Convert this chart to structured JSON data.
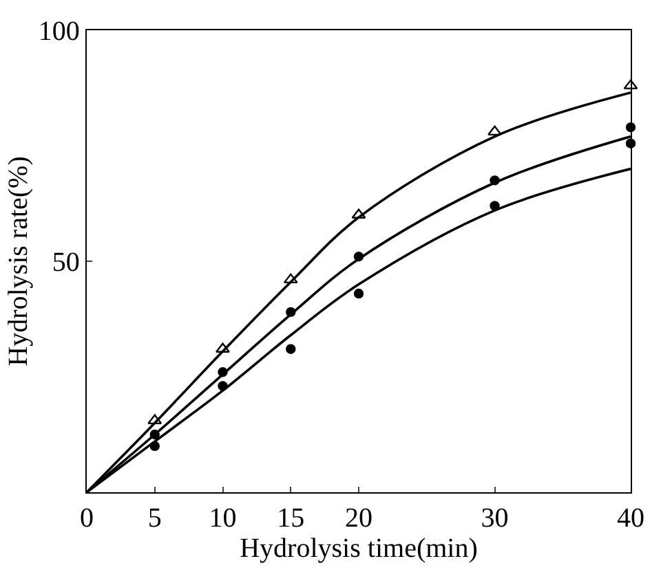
{
  "chart_data": {
    "type": "scatter",
    "xlabel": "Hydrolysis time(min)",
    "ylabel": "Hydrolysis rate(%)",
    "xlim": [
      0,
      40
    ],
    "xticks": [
      0,
      5,
      10,
      15,
      20,
      30,
      40
    ],
    "ylim": [
      0,
      100
    ],
    "yticks": [
      50,
      100
    ],
    "series": [
      {
        "marker": "triangle",
        "color": "#000000",
        "x": [
          5,
          10,
          15,
          20,
          30,
          40
        ],
        "values": [
          15.5,
          31,
          46,
          60,
          78,
          88
        ]
      },
      {
        "marker": "circle",
        "color": "#000000",
        "x": [
          5,
          10,
          15,
          20,
          30,
          40
        ],
        "values": [
          12.5,
          26,
          39,
          51,
          67.5,
          79
        ]
      },
      {
        "marker": "circle",
        "color": "#000000",
        "x": [
          5,
          10,
          15,
          20,
          30,
          40
        ],
        "values": [
          10,
          23,
          31,
          43,
          62,
          75.5
        ]
      },
      {
        "type": "line",
        "marker": "none",
        "color": "#000000",
        "x": [
          0,
          5,
          10,
          15,
          20,
          30,
          40
        ],
        "values": [
          0,
          15,
          30.5,
          45.5,
          59.5,
          77,
          86.5
        ]
      },
      {
        "type": "line",
        "marker": "none",
        "color": "#000000",
        "x": [
          0,
          5,
          10,
          15,
          20,
          30,
          40
        ],
        "values": [
          0,
          12.5,
          25.5,
          38.5,
          50.5,
          67,
          77
        ]
      },
      {
        "type": "line",
        "marker": "none",
        "color": "#000000",
        "x": [
          0,
          5,
          10,
          15,
          20,
          30,
          40
        ],
        "values": [
          0,
          11,
          22,
          34,
          45,
          61,
          70
        ]
      }
    ]
  }
}
